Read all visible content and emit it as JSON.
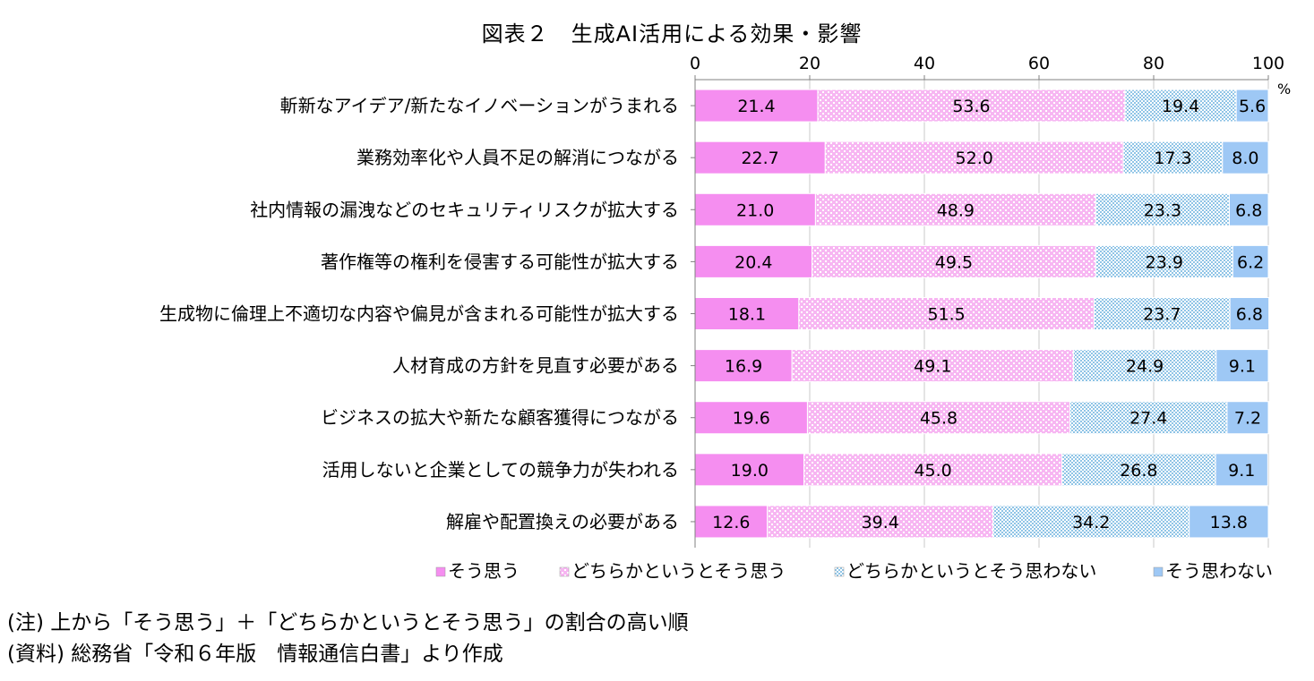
{
  "title": "図表２　生成AI活用による効果・影響",
  "unit": "%",
  "notes": {
    "note1": "(注) 上から「そう思う」＋「どちらかというとそう思う」の割合の高い順",
    "note2": "(資料) 総務省「令和６年版　情報通信白書」より作成"
  },
  "chart_data": {
    "type": "bar",
    "orientation": "horizontal",
    "stacked": true,
    "title": "図表２　生成AI活用による効果・影響",
    "xlim": [
      0,
      100
    ],
    "xticks": [
      "0",
      "20",
      "40",
      "60",
      "80",
      "100"
    ],
    "axis_position": "top",
    "legend_position": "bottom",
    "categories": [
      "斬新なアイデア/新たなイノベーションがうまれる",
      "業務効率化や人員不足の解消につながる",
      "社内情報の漏洩などのセキュリティリスクが拡大する",
      "著作権等の権利を侵害する可能性が拡大する",
      "生成物に倫理上不適切な内容や偏見が含まれる可能性が拡大する",
      "人材育成の方針を見直す必要がある",
      "ビジネスの拡大や新たな顧客獲得につながる",
      "活用しないと企業としての競争力が失われる",
      "解雇や配置換えの必要がある"
    ],
    "series": [
      {
        "name": "そう思う",
        "color": "#f58ef0",
        "pattern": "solid",
        "values": [
          21.4,
          22.7,
          21.0,
          20.4,
          18.1,
          16.9,
          19.6,
          19.0,
          12.6
        ],
        "labels": [
          "21.4",
          "22.7",
          "21.0",
          "20.4",
          "18.1",
          "16.9",
          "19.6",
          "19.0",
          "12.6"
        ]
      },
      {
        "name": "どちらかというとそう思う",
        "color": "#f5a6f0",
        "pattern": "dots",
        "values": [
          53.6,
          52.0,
          48.9,
          49.5,
          51.5,
          49.1,
          45.8,
          45.0,
          39.4
        ],
        "labels": [
          "53.6",
          "52.0",
          "48.9",
          "49.5",
          "51.5",
          "49.1",
          "45.8",
          "45.0",
          "39.4"
        ]
      },
      {
        "name": "どちらかというとそう思わない",
        "color": "#a8d4ec",
        "pattern": "checker",
        "values": [
          19.4,
          17.3,
          23.3,
          23.9,
          23.7,
          24.9,
          27.4,
          26.8,
          34.2
        ],
        "labels": [
          "19.4",
          "17.3",
          "23.3",
          "23.9",
          "23.7",
          "24.9",
          "27.4",
          "26.8",
          "34.2"
        ]
      },
      {
        "name": "そう思わない",
        "color": "#9ec8f5",
        "pattern": "solid",
        "values": [
          5.6,
          8.0,
          6.8,
          6.2,
          6.8,
          9.1,
          7.2,
          9.1,
          13.8
        ],
        "labels": [
          "5.6",
          "8.0",
          "6.8",
          "6.2",
          "6.8",
          "9.1",
          "7.2",
          "9.1",
          "13.8"
        ]
      }
    ]
  }
}
